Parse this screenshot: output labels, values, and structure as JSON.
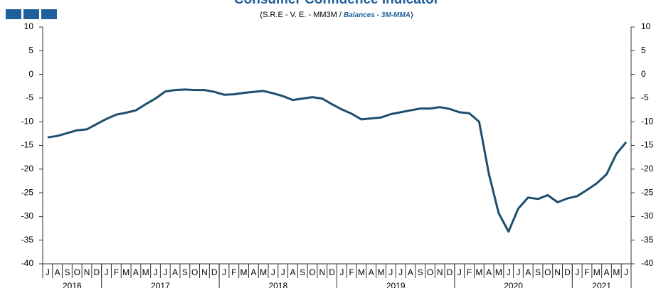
{
  "chart_data": {
    "type": "line",
    "title": "Consumer Confidence Indicator",
    "subtitle_parts": [
      "(S.R.E - V. E. - MM3M / ",
      "Balances - 3M-MMA",
      ")"
    ],
    "categories": [
      "J",
      "A",
      "S",
      "O",
      "N",
      "D",
      "J",
      "F",
      "M",
      "A",
      "M",
      "J",
      "J",
      "A",
      "S",
      "O",
      "N",
      "D",
      "J",
      "F",
      "M",
      "A",
      "M",
      "J",
      "J",
      "A",
      "S",
      "O",
      "N",
      "D",
      "J",
      "F",
      "M",
      "A",
      "M",
      "J",
      "J",
      "A",
      "S",
      "O",
      "N",
      "D",
      "J",
      "F",
      "M",
      "A",
      "M",
      "J",
      "J",
      "A",
      "S",
      "O",
      "N",
      "D",
      "J",
      "F",
      "M",
      "A",
      "M",
      "J"
    ],
    "years": [
      {
        "label": "2016",
        "months": 6
      },
      {
        "label": "2017",
        "months": 12
      },
      {
        "label": "2018",
        "months": 12
      },
      {
        "label": "2019",
        "months": 12
      },
      {
        "label": "2020",
        "months": 12
      },
      {
        "label": "2021",
        "months": 6
      }
    ],
    "series": [
      {
        "color": "#1d4e6e",
        "values": [
          -13.3,
          -13.0,
          -12.4,
          -11.8,
          -11.6,
          -10.5,
          -9.4,
          -8.5,
          -8.1,
          -7.6,
          -6.3,
          -5.1,
          -3.6,
          -3.3,
          -3.2,
          -3.3,
          -3.3,
          -3.7,
          -4.3,
          -4.2,
          -3.9,
          -3.7,
          -3.5,
          -4.0,
          -4.6,
          -5.4,
          -5.1,
          -4.8,
          -5.1,
          -6.3,
          -7.4,
          -8.3,
          -9.5,
          -9.3,
          -9.1,
          -8.4,
          -8.0,
          -7.6,
          -7.2,
          -7.2,
          -6.9,
          -7.3,
          -8.0,
          -8.2,
          -10.0,
          -21.0,
          -29.3,
          -33.2,
          -28.3,
          -26.0,
          -26.3,
          -25.5,
          -27.0,
          -26.2,
          -25.7,
          -24.4,
          -23.0,
          -21.1,
          -16.8,
          -14.3
        ]
      }
    ],
    "ylim": [
      -40,
      10
    ],
    "yticks": [
      -40,
      -35,
      -30,
      -25,
      -20,
      -15,
      -10,
      -5,
      0,
      5,
      10
    ],
    "grid": false
  }
}
